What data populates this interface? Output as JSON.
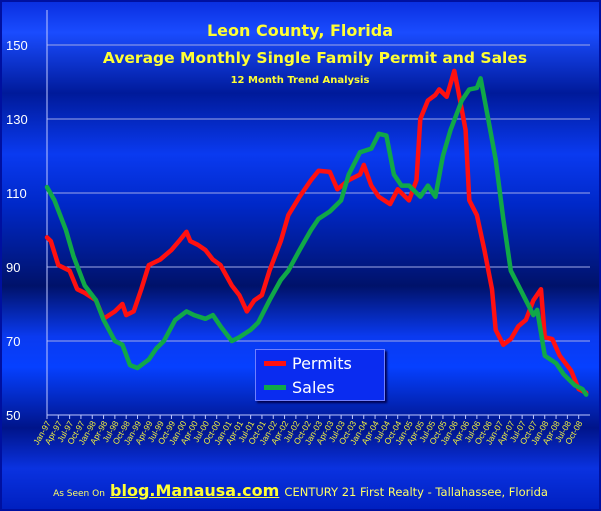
{
  "chart_data": {
    "type": "line",
    "title": "Leon County, Florida",
    "subtitle": "Average Monthly Single Family Permit and Sales",
    "subsubtitle": "12 Month Trend Analysis",
    "xlabel": "",
    "ylabel": "",
    "ylim": [
      50,
      155
    ],
    "yticks": [
      50,
      70,
      90,
      110,
      130,
      150
    ],
    "xticks": [
      "Jan-97",
      "Apr-97",
      "Jul-97",
      "Oct-97",
      "Jan-98",
      "Apr-98",
      "Jul-98",
      "Oct-98",
      "Jan-99",
      "Apr-99",
      "Jul-99",
      "Oct-99",
      "Jan-00",
      "Apr-00",
      "Jul-00",
      "Oct-00",
      "Jan-01",
      "Apr-01",
      "Jul-01",
      "Oct-01",
      "Jan-02",
      "Apr-02",
      "Jul-02",
      "Oct-02",
      "Jan-03",
      "Apr-03",
      "Jul-03",
      "Oct-03",
      "Jan-04",
      "Apr-04",
      "Jul-04",
      "Oct-04",
      "Jan-05",
      "Apr-05",
      "Jul-05",
      "Oct-05",
      "Jan-06",
      "Apr-06",
      "Jul-06",
      "Oct-06",
      "Jan-07",
      "Apr-07",
      "Jul-07",
      "Oct-07",
      "Jan-08",
      "Apr-08",
      "Jul-08",
      "Oct-08"
    ],
    "grid": true,
    "legend_position": "bottom-center",
    "series": [
      {
        "name": "Permits",
        "color": "#ff1010",
        "points": [
          [
            "Jan-97",
            98
          ],
          [
            "Feb-97",
            97
          ],
          [
            "Apr-97",
            90.5
          ],
          [
            "Jul-97",
            89
          ],
          [
            "Sep-97",
            84
          ],
          [
            "Nov-97",
            83
          ],
          [
            "Feb-98",
            81
          ],
          [
            "Apr-98",
            76
          ],
          [
            "Jul-98",
            78
          ],
          [
            "Sep-98",
            80
          ],
          [
            "Oct-98",
            77
          ],
          [
            "Dec-98",
            78
          ],
          [
            "Feb-99",
            84
          ],
          [
            "Apr-99",
            90.5
          ],
          [
            "Jul-99",
            92
          ],
          [
            "Oct-99",
            94.6
          ],
          [
            "Dec-99",
            97
          ],
          [
            "Feb-00",
            99.5
          ],
          [
            "Mar-00",
            97
          ],
          [
            "May-00",
            96
          ],
          [
            "Jul-00",
            94.6
          ],
          [
            "Sep-00",
            92
          ],
          [
            "Nov-00",
            90.5
          ],
          [
            "Feb-01",
            85
          ],
          [
            "Apr-01",
            82.4
          ],
          [
            "Jun-01",
            78
          ],
          [
            "Aug-01",
            81
          ],
          [
            "Oct-01",
            82.4
          ],
          [
            "Dec-01",
            89
          ],
          [
            "Mar-02",
            97
          ],
          [
            "May-02",
            104
          ],
          [
            "Aug-02",
            109
          ],
          [
            "Nov-02",
            113.5
          ],
          [
            "Jan-03",
            116
          ],
          [
            "Apr-03",
            115.7
          ],
          [
            "Jun-03",
            111
          ],
          [
            "Sep-03",
            113.5
          ],
          [
            "Dec-03",
            115
          ],
          [
            "Jan-04",
            117.6
          ],
          [
            "Mar-04",
            112
          ],
          [
            "May-04",
            109
          ],
          [
            "Aug-04",
            107
          ],
          [
            "Oct-04",
            111
          ],
          [
            "Dec-04",
            109
          ],
          [
            "Jan-05",
            108
          ],
          [
            "Mar-05",
            113.5
          ],
          [
            "Apr-05",
            130
          ],
          [
            "Jun-05",
            135
          ],
          [
            "Aug-05",
            136.5
          ],
          [
            "Sep-05",
            138
          ],
          [
            "Nov-05",
            136
          ],
          [
            "Jan-06",
            143
          ],
          [
            "Feb-06",
            138
          ],
          [
            "Apr-06",
            127
          ],
          [
            "May-06",
            108
          ],
          [
            "Jul-06",
            104
          ],
          [
            "Sep-06",
            94.6
          ],
          [
            "Nov-06",
            84
          ],
          [
            "Dec-06",
            73
          ],
          [
            "Feb-07",
            69
          ],
          [
            "Apr-07",
            70.5
          ],
          [
            "Jun-07",
            74
          ],
          [
            "Aug-07",
            75.7
          ],
          [
            "Oct-07",
            81
          ],
          [
            "Dec-07",
            84
          ],
          [
            "Jan-08",
            71
          ],
          [
            "Mar-08",
            70.5
          ],
          [
            "May-08",
            66
          ],
          [
            "Aug-08",
            62
          ],
          [
            "Oct-08",
            57
          ],
          [
            "Dec-08",
            56
          ]
        ]
      },
      {
        "name": "Sales",
        "color": "#10a848",
        "points": [
          [
            "Jan-97",
            111.6
          ],
          [
            "Mar-97",
            108
          ],
          [
            "Jun-97",
            100
          ],
          [
            "Aug-97",
            93
          ],
          [
            "Nov-97",
            85
          ],
          [
            "Feb-98",
            81
          ],
          [
            "Apr-98",
            75.7
          ],
          [
            "Jul-98",
            70
          ],
          [
            "Sep-98",
            69
          ],
          [
            "Nov-98",
            63.5
          ],
          [
            "Jan-99",
            62.7
          ],
          [
            "Apr-99",
            65
          ],
          [
            "Jun-99",
            68
          ],
          [
            "Aug-99",
            70
          ],
          [
            "Nov-99",
            75.7
          ],
          [
            "Feb-00",
            78
          ],
          [
            "Apr-00",
            77
          ],
          [
            "Jul-00",
            76
          ],
          [
            "Sep-00",
            77
          ],
          [
            "Nov-00",
            74
          ],
          [
            "Feb-01",
            70
          ],
          [
            "Apr-01",
            71
          ],
          [
            "Jul-01",
            73
          ],
          [
            "Sep-01",
            75
          ],
          [
            "Dec-01",
            81
          ],
          [
            "Mar-02",
            86.5
          ],
          [
            "May-02",
            89
          ],
          [
            "Aug-02",
            94.6
          ],
          [
            "Nov-02",
            100
          ],
          [
            "Jan-03",
            103
          ],
          [
            "Apr-03",
            105
          ],
          [
            "Jul-03",
            108
          ],
          [
            "Sep-03",
            115
          ],
          [
            "Dec-03",
            121
          ],
          [
            "Mar-04",
            122
          ],
          [
            "May-04",
            126
          ],
          [
            "Jul-04",
            125.5
          ],
          [
            "Sep-04",
            115
          ],
          [
            "Nov-04",
            112
          ],
          [
            "Jan-05",
            112
          ],
          [
            "Apr-05",
            109
          ],
          [
            "Jun-05",
            112
          ],
          [
            "Aug-05",
            109
          ],
          [
            "Oct-05",
            120
          ],
          [
            "Dec-05",
            127
          ],
          [
            "Mar-06",
            135
          ],
          [
            "May-06",
            138
          ],
          [
            "Jul-06",
            138.4
          ],
          [
            "Aug-06",
            141
          ],
          [
            "Oct-06",
            130
          ],
          [
            "Dec-06",
            119
          ],
          [
            "Feb-07",
            103
          ],
          [
            "Apr-07",
            89
          ],
          [
            "Jun-07",
            85
          ],
          [
            "Aug-07",
            81
          ],
          [
            "Oct-07",
            77
          ],
          [
            "Nov-07",
            78.4
          ],
          [
            "Jan-08",
            66
          ],
          [
            "Apr-08",
            64
          ],
          [
            "Jun-08",
            61
          ],
          [
            "Sep-08",
            58
          ],
          [
            "Nov-08",
            57
          ],
          [
            "Dec-08",
            55.5
          ]
        ]
      }
    ]
  },
  "footer": {
    "prefix": "As Seen On",
    "link": "blog.Manausa.com",
    "text": "CENTURY 21 First Realty - Tallahassee, Florida"
  }
}
